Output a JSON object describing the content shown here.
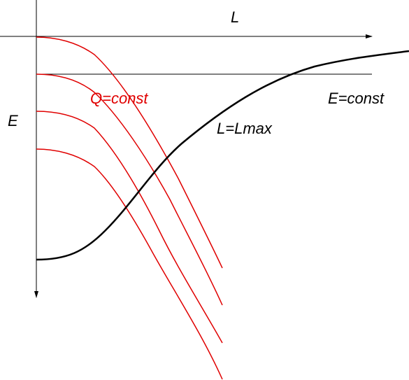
{
  "labels": {
    "x_axis": "L",
    "y_axis": "E",
    "red_curves": "Q=const",
    "horizontal_line": "E=const",
    "black_curve": "L=Lmax"
  },
  "colors": {
    "axes": "#000000",
    "red_curves": "#e00000",
    "black_curve": "#000000",
    "red_label": "#e00000",
    "text": "#000000"
  }
}
